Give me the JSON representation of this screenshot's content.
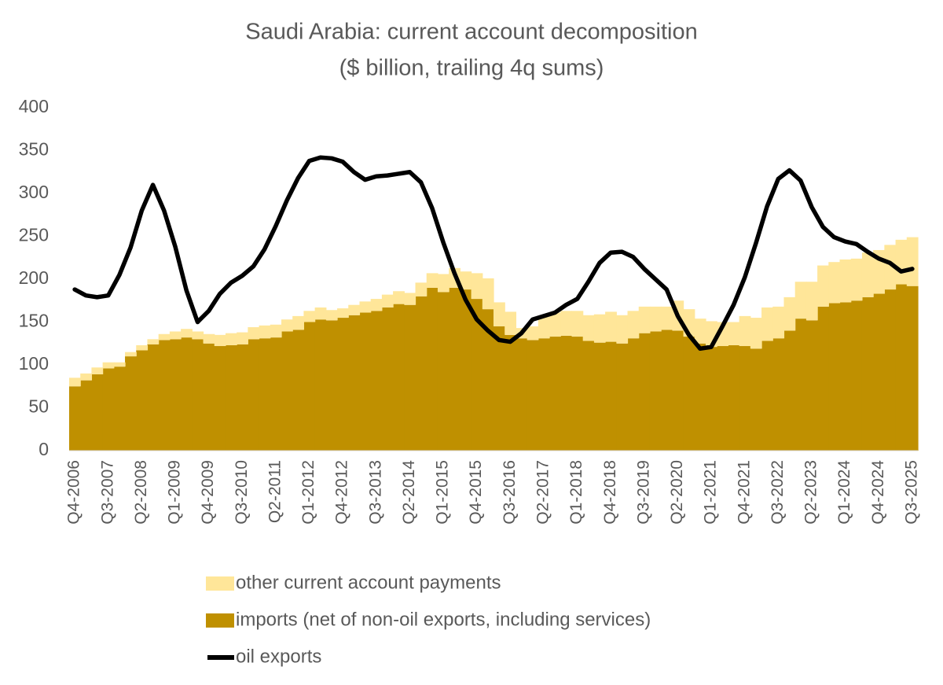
{
  "chart_data": {
    "type": "bar",
    "stacked": true,
    "title": "Saudi Arabia: current account decomposition",
    "subtitle": "($ billion, trailing 4q sums)",
    "categories": [
      "Q4-2006",
      null,
      null,
      "Q3-2007",
      null,
      null,
      "Q2-2008",
      null,
      null,
      "Q1-2009",
      null,
      null,
      "Q4-2009",
      null,
      null,
      "Q3-2010",
      null,
      null,
      "Q2-2011",
      null,
      null,
      "Q1-2012",
      null,
      null,
      "Q4-2012",
      null,
      null,
      "Q3-2013",
      null,
      null,
      "Q2-2014",
      null,
      null,
      "Q1-2015",
      null,
      null,
      "Q4-2015",
      null,
      null,
      "Q3-2016",
      null,
      null,
      "Q2-2017",
      null,
      null,
      "Q1-2018",
      null,
      null,
      "Q4-2018",
      null,
      null,
      "Q3-2019",
      null,
      null,
      "Q2-2020",
      null,
      null,
      "Q1-2021",
      null,
      null,
      "Q4-2021",
      null,
      null,
      "Q3-2022",
      null,
      null,
      "Q2-2023",
      null,
      null,
      "Q1-2024",
      null,
      null,
      "Q4-2024",
      null,
      null,
      "Q3-2025"
    ],
    "series": [
      {
        "name": "imports (net of non-oil exports, including services)",
        "color": "#bf9000",
        "type": "bar",
        "values": [
          75,
          82,
          89,
          96,
          98,
          110,
          117,
          124,
          129,
          130,
          132,
          130,
          125,
          122,
          123,
          124,
          130,
          131,
          132,
          139,
          141,
          150,
          153,
          152,
          155,
          158,
          161,
          163,
          167,
          171,
          170,
          180,
          190,
          185,
          190,
          188,
          177,
          165,
          145,
          135,
          131,
          129,
          131,
          133,
          134,
          133,
          128,
          126,
          127,
          125,
          131,
          137,
          139,
          141,
          140,
          133,
          125,
          121,
          122,
          123,
          122,
          119,
          128,
          131,
          140,
          154,
          152,
          168,
          172,
          173,
          175,
          179,
          183,
          188,
          194,
          192
        ]
      },
      {
        "name": "other current account payments",
        "color": "#ffe699",
        "type": "bar",
        "values": [
          10,
          8,
          8,
          7,
          5,
          5,
          6,
          6,
          7,
          9,
          10,
          9,
          11,
          13,
          14,
          14,
          14,
          15,
          15,
          14,
          16,
          13,
          14,
          12,
          11,
          12,
          13,
          14,
          15,
          15,
          14,
          16,
          17,
          21,
          23,
          21,
          30,
          36,
          28,
          27,
          12,
          16,
          25,
          28,
          29,
          30,
          30,
          33,
          35,
          33,
          32,
          31,
          29,
          27,
          35,
          32,
          29,
          30,
          28,
          27,
          35,
          36,
          39,
          37,
          39,
          43,
          45,
          48,
          48,
          50,
          49,
          52,
          51,
          52,
          52,
          57
        ]
      },
      {
        "name": "oil exports",
        "color": "#000000",
        "type": "line",
        "values": [
          188,
          181,
          179,
          181,
          205,
          237,
          280,
          310,
          280,
          238,
          187,
          150,
          163,
          183,
          196,
          204,
          215,
          235,
          262,
          292,
          318,
          338,
          342,
          341,
          337,
          325,
          316,
          320,
          321,
          323,
          325,
          313,
          283,
          243,
          207,
          176,
          153,
          140,
          129,
          127,
          137,
          153,
          157,
          161,
          170,
          177,
          197,
          219,
          231,
          232,
          226,
          212,
          200,
          188,
          157,
          135,
          119,
          121,
          145,
          170,
          202,
          242,
          285,
          317,
          327,
          315,
          284,
          261,
          249,
          244,
          241,
          232,
          224,
          219,
          209,
          212
        ]
      }
    ],
    "ylim": [
      0,
      400
    ],
    "yticks": [
      0,
      50,
      100,
      150,
      200,
      250,
      300,
      350,
      400
    ],
    "grid": false
  }
}
